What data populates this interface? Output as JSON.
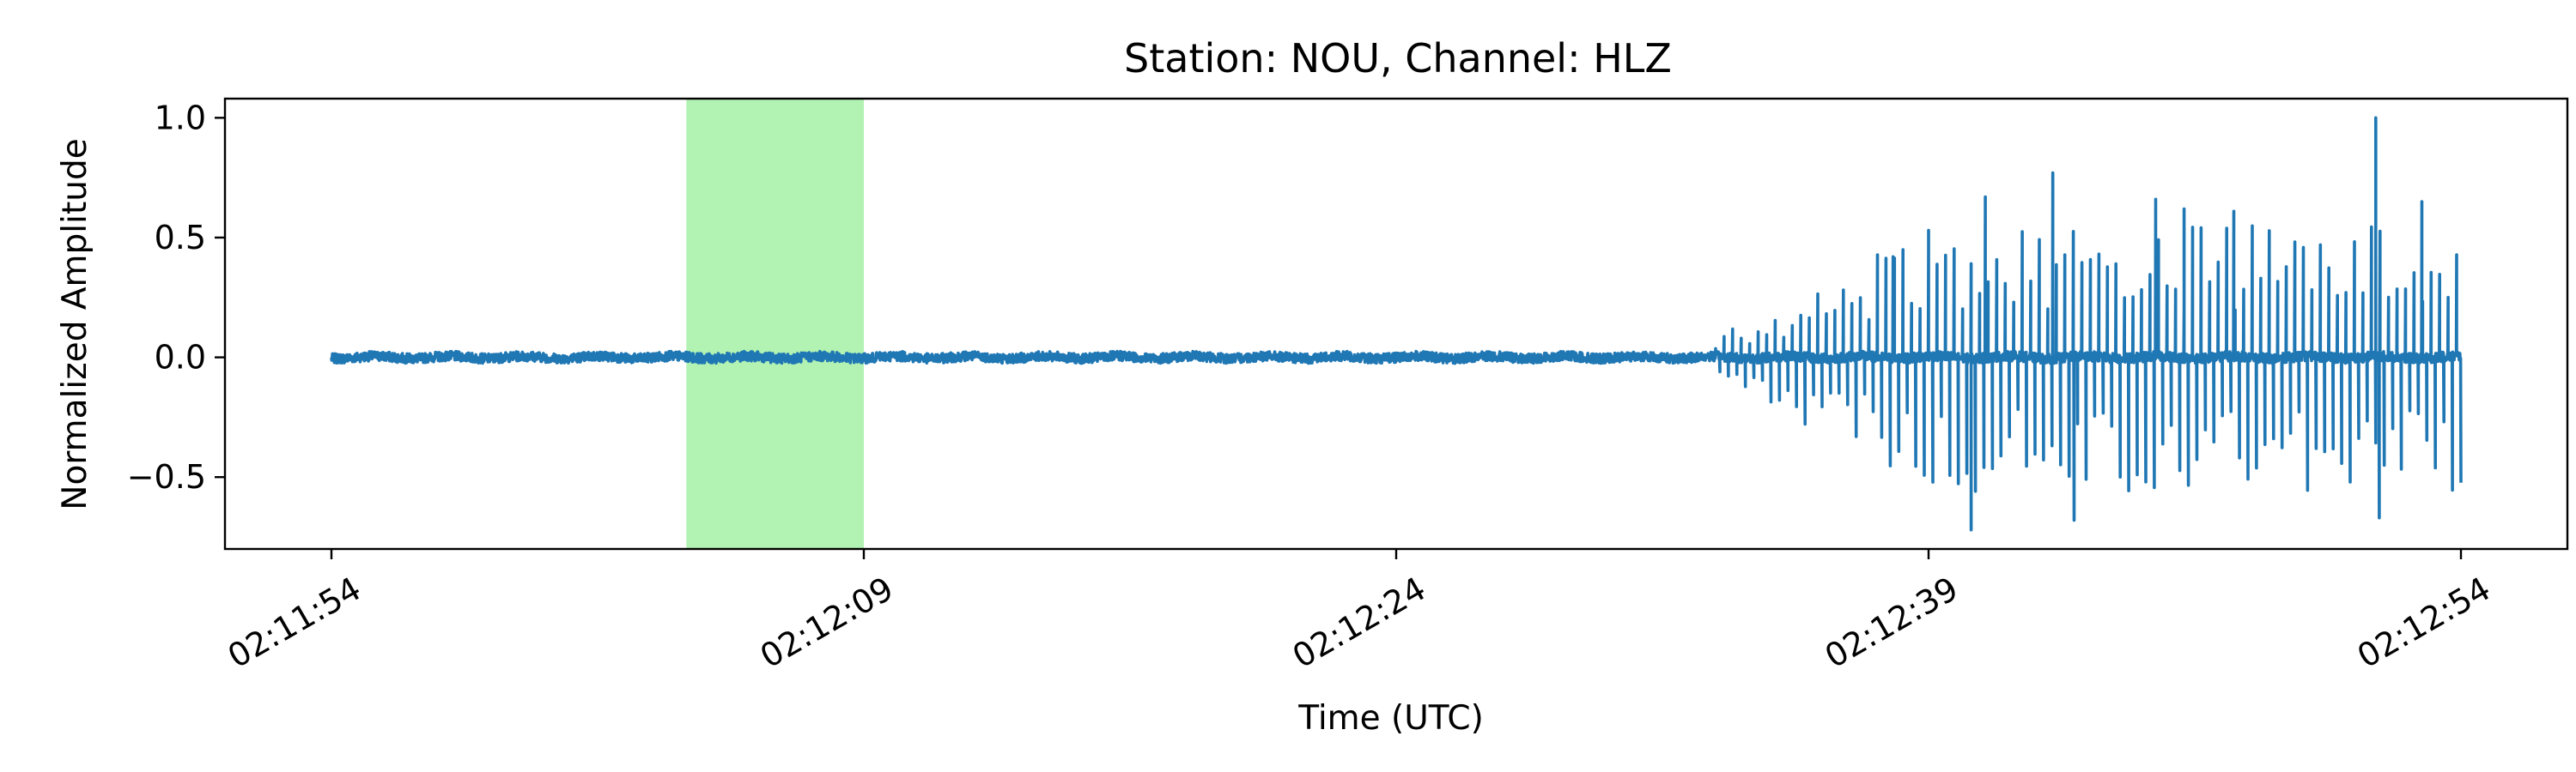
{
  "chart_data": {
    "type": "line",
    "title": "Station: NOU, Channel: HLZ",
    "xlabel": "Time (UTC)",
    "ylabel": "Normalized Amplitude",
    "x_start": "02:11:54",
    "x_end": "02:12:54",
    "xlim": [
      "02:11:51",
      "02:12:57"
    ],
    "ylim": [
      -0.8,
      1.08
    ],
    "x_ticks": [
      "02:11:54",
      "02:12:09",
      "02:12:24",
      "02:12:39",
      "02:12:54"
    ],
    "y_ticks": [
      {
        "value": 1.0,
        "label": "1.0"
      },
      {
        "value": 0.5,
        "label": "0.5"
      },
      {
        "value": 0.0,
        "label": "0.0"
      },
      {
        "value": -0.5,
        "label": "−0.5"
      }
    ],
    "highlight_window": {
      "start": "02:12:04",
      "end": "02:12:09",
      "color": "#b2f2b2"
    },
    "series_color": "#1f77b4",
    "noise_amplitude": 0.02,
    "onset": "02:12:33",
    "peaks": [
      {
        "time": "02:12:38.0",
        "value": 0.42
      },
      {
        "time": "02:12:39.0",
        "value": 0.53
      },
      {
        "time": "02:12:40.6",
        "value": 0.67
      },
      {
        "time": "02:12:40.2",
        "value": -0.72
      },
      {
        "time": "02:12:42.5",
        "value": 0.77
      },
      {
        "time": "02:12:43.1",
        "value": -0.68
      },
      {
        "time": "02:12:45.4",
        "value": 0.66
      },
      {
        "time": "02:12:46.2",
        "value": 0.62
      },
      {
        "time": "02:12:47.6",
        "value": 0.61
      },
      {
        "time": "02:12:51.6",
        "value": 1.0
      },
      {
        "time": "02:12:51.7",
        "value": -0.67
      },
      {
        "time": "02:12:52.9",
        "value": 0.65
      }
    ]
  }
}
